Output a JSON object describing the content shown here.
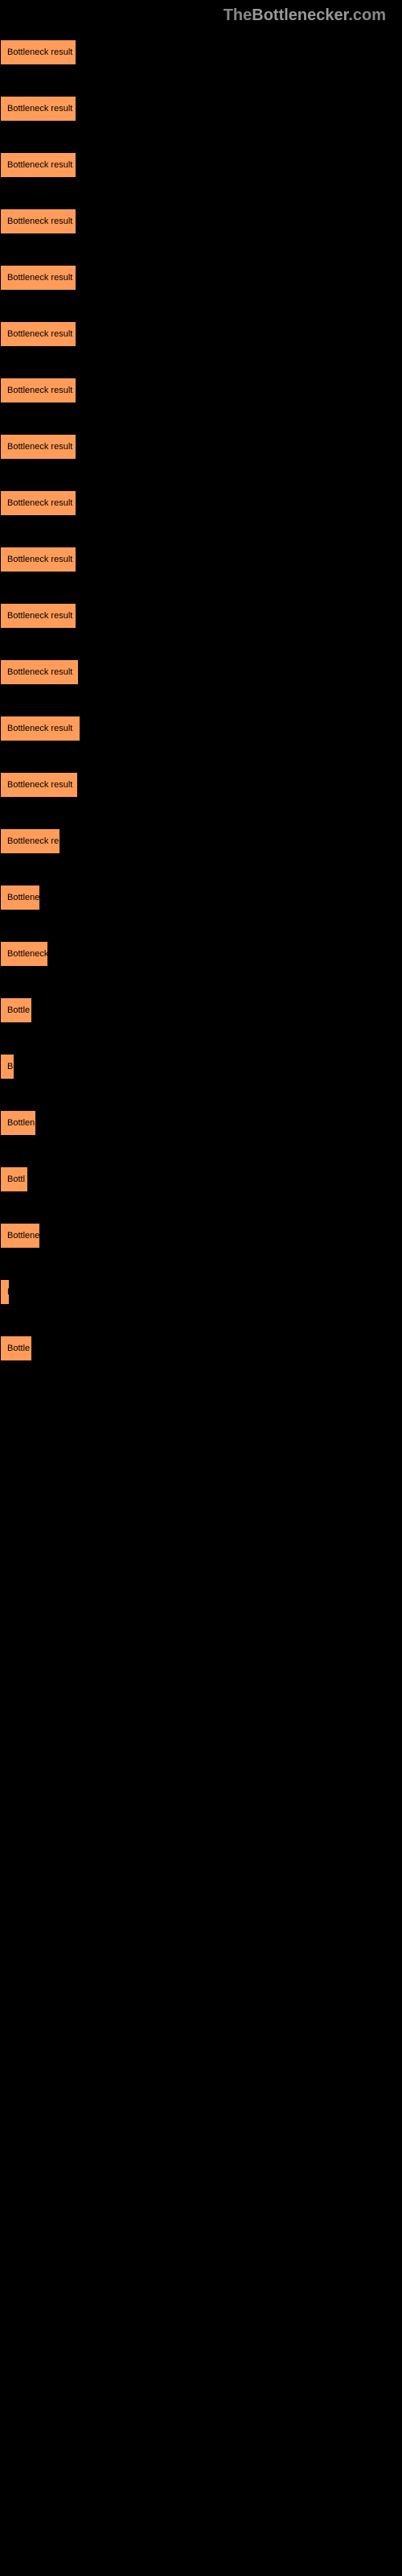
{
  "header": {
    "the": "The",
    "bottlenecker": "Bottlenecker",
    "com": ".com"
  },
  "chart": {
    "bar_color": "#ff9c5a",
    "bar_border_color": "#000000",
    "background_color": "#000000",
    "bars": [
      {
        "label": "Bottleneck result",
        "width": 95
      },
      {
        "label": "Bottleneck result",
        "width": 95
      },
      {
        "label": "Bottleneck result",
        "width": 95
      },
      {
        "label": "Bottleneck result",
        "width": 95
      },
      {
        "label": "Bottleneck result",
        "width": 95
      },
      {
        "label": "Bottleneck result",
        "width": 95
      },
      {
        "label": "Bottleneck result",
        "width": 95
      },
      {
        "label": "Bottleneck result",
        "width": 95
      },
      {
        "label": "Bottleneck result",
        "width": 95
      },
      {
        "label": "Bottleneck result",
        "width": 95
      },
      {
        "label": "Bottleneck result",
        "width": 95
      },
      {
        "label": "Bottleneck result",
        "width": 98
      },
      {
        "label": "Bottleneck result",
        "width": 100
      },
      {
        "label": "Bottleneck result",
        "width": 97
      },
      {
        "label": "Bottleneck re",
        "width": 75
      },
      {
        "label": "Bottlene",
        "width": 50
      },
      {
        "label": "Bottleneck",
        "width": 60
      },
      {
        "label": "Bottle",
        "width": 40
      },
      {
        "label": "Bo",
        "width": 18
      },
      {
        "label": "Bottlen",
        "width": 45
      },
      {
        "label": "Bottl",
        "width": 35
      },
      {
        "label": "Bottlene",
        "width": 50
      },
      {
        "label": "B",
        "width": 12
      },
      {
        "label": "Bottle",
        "width": 40
      }
    ]
  }
}
